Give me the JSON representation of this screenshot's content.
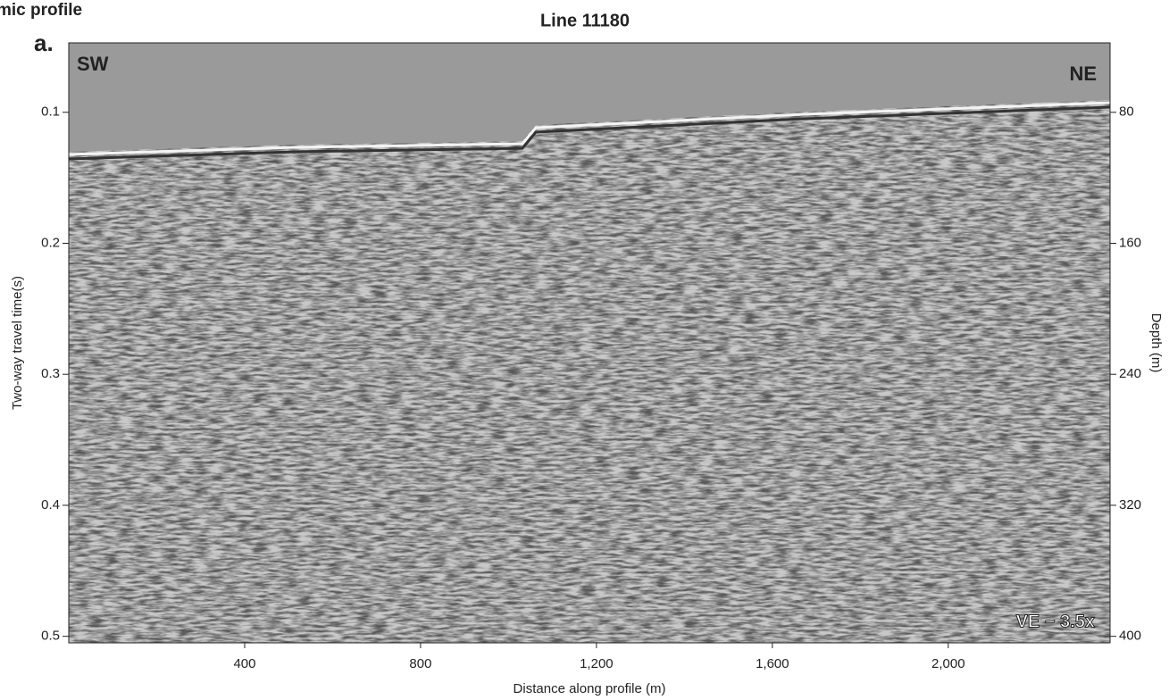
{
  "chart_data": {
    "type": "image",
    "panel_title": "mic profile",
    "panel_label": "a.",
    "title": "Line 11180",
    "xlabel": "Distance along profile (m)",
    "ylabel": "Two-way travel time(s)",
    "y2label": "Depth (m)",
    "annotations": [
      "SW",
      "NE",
      "VE ~ 3.5x"
    ],
    "xlim": [
      0,
      2368
    ],
    "xticks": [
      400,
      800,
      {
        "value": 1200,
        "label": "1,200"
      },
      {
        "value": 1600,
        "label": "1,600"
      },
      {
        "value": 2000,
        "label": "2,000"
      }
    ],
    "ylim": [
      0.047,
      0.505
    ],
    "yticks": [
      0.1,
      0.2,
      0.3,
      0.4,
      0.5
    ],
    "y2lim": [
      37.6,
      404
    ],
    "y2ticks": [
      80,
      160,
      240,
      320,
      400
    ]
  }
}
